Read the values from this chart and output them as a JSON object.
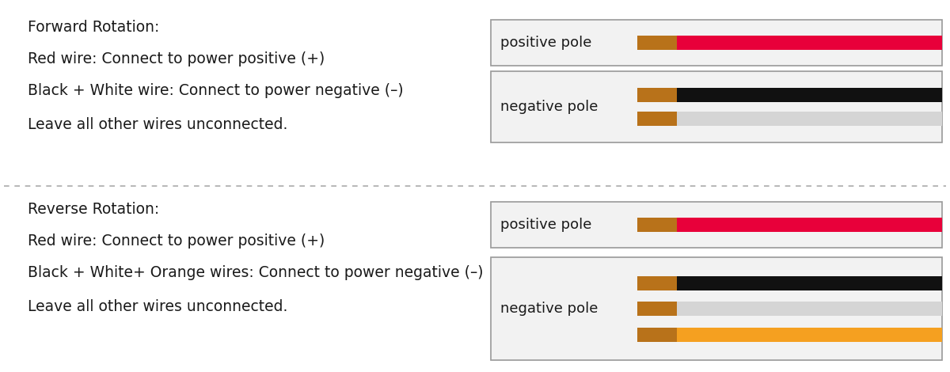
{
  "bg_color": "#ffffff",
  "text_color": "#1a1a1a",
  "divider_color": "#aaaaaa",
  "forward": {
    "title": "Forward Rotation:",
    "line1": "Red wire: Connect to power positive (+)",
    "line2": "Black + White wire: Connect to power negative (–)",
    "line3": "Leave all other wires unconnected.",
    "pos_label": "positive pole",
    "neg_label": "negative pole",
    "pos_wire_color": "#e8003a",
    "neg_wire1_color": "#111111",
    "neg_wire2_color": "#d5d5d5",
    "copper_color": "#b8721a"
  },
  "reverse": {
    "title": "Reverse Rotation:",
    "line1": "Red wire: Connect to power positive (+)",
    "line2": "Black + White+ Orange wires: Connect to power negative (–)",
    "line3": "Leave all other wires unconnected.",
    "pos_label": "positive pole",
    "neg_label": "negative pole",
    "pos_wire_color": "#e8003a",
    "neg_wire1_color": "#111111",
    "neg_wire2_color": "#d5d5d5",
    "neg_wire3_color": "#f5a020",
    "copper_color": "#b8721a"
  },
  "font_size": 13.5,
  "label_font_size": 13
}
